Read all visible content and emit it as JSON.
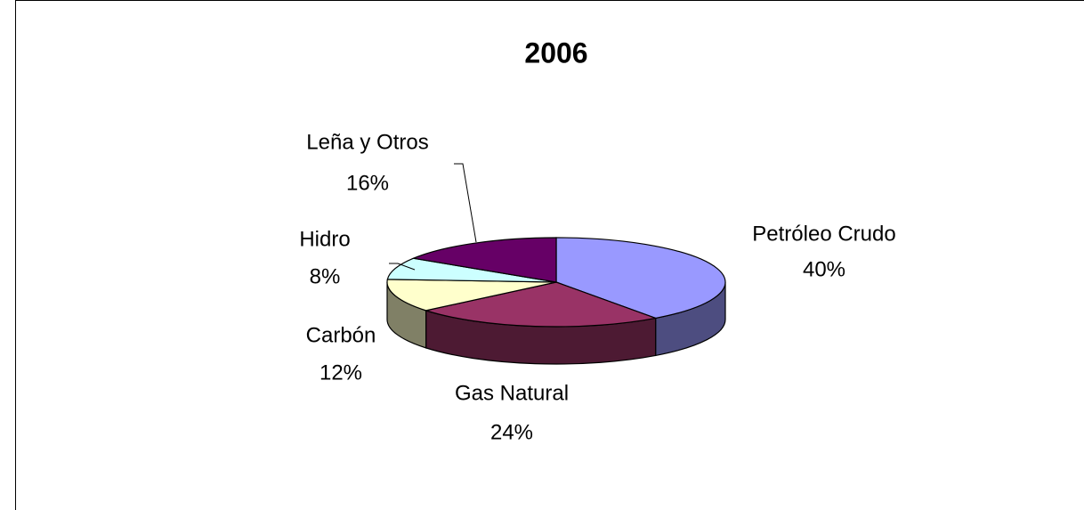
{
  "chart_data": {
    "type": "pie3d",
    "title": "2006",
    "categories": [
      "Petróleo Crudo",
      "Gas Natural",
      "Carbón",
      "Hidro",
      "Leña y Otros"
    ],
    "values": [
      40,
      24,
      12,
      8,
      16
    ],
    "value_labels": [
      "40%",
      "24%",
      "12%",
      "8%",
      "16%"
    ],
    "colors": [
      "#9999ff",
      "#993366",
      "#ffffcc",
      "#ccffff",
      "#660066"
    ]
  }
}
